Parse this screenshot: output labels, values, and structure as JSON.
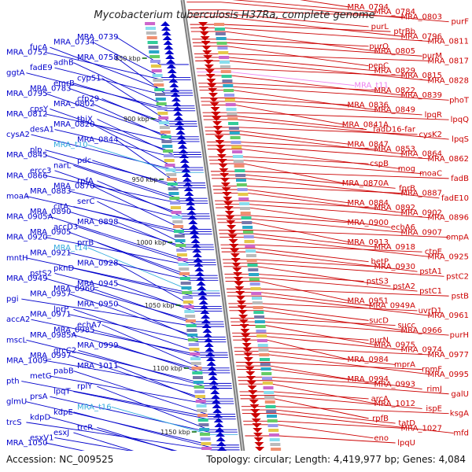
{
  "title": "Mycobacterium tuberculosis H37Ra, complete genome",
  "footer": {
    "accession": "Accession: NC_009525",
    "summary": "Topology: circular; Length: 4,419,977 bp; Genes: 4,084"
  },
  "colors": {
    "forward": "#cc0000",
    "reverse": "#0000cc",
    "trna_forward": "#ee82ee",
    "trna_reverse": "#33aadd",
    "backbone": "#888888",
    "kbp_tick": "#006600"
  },
  "scale_marks": [
    "850 kbp",
    "900 kbp",
    "950 kbp",
    "1000 kbp",
    "1050 kbp",
    "1100 kbp",
    "1150 kbp"
  ],
  "left_labels": [
    "MRA_0739",
    "MRA_0734",
    "fucA",
    "MRA_0752",
    "MRA_0758",
    "adhB",
    "fadE9",
    "ggtA",
    "cyp51",
    "emrB",
    "MRA_0783",
    "MRA_0795",
    "cfp29",
    "MRA_0802",
    "cpsY",
    "MRA_0812",
    "thiX",
    "MRA_0820",
    "desA1",
    "cysA2",
    "MRA_0844",
    "MRA_t10",
    "plp",
    "MRA_0845",
    "pdc",
    "narL",
    "ercc3",
    "MRA_0866",
    "rpfA",
    "MRA_0870",
    "MRA_0883",
    "moaA",
    "serC",
    "citA",
    "MRA_0890",
    "MRA_0905A",
    "MRA_0898",
    "accD3",
    "MRA_0905",
    "MRA_0920",
    "prrB",
    "MRA_t14",
    "MRA_0921",
    "mntH",
    "MRA_0928",
    "pknD",
    "pstS2",
    "MRA_0949",
    "MRA_0945",
    "MRA_0960",
    "MRA_0957",
    "pgi",
    "MRA_0950",
    "lprP",
    "MRA_0971",
    "accA2",
    "echA7",
    "MRA_0985",
    "MRA_0985A",
    "mscL",
    "MRA_0999",
    "grcC2",
    "MRA_0997",
    "MRA_1009",
    "MRA_1011",
    "pabB",
    "metG",
    "pth",
    "rplY",
    "lpqT",
    "prsA",
    "glmU",
    "MRA_t16",
    "kdpE",
    "kdpD",
    "trcS",
    "trcR",
    "esxJ",
    "esxV1",
    "MRA_1050"
  ],
  "right_labels": [
    "MRA_0794",
    "MRA_0784",
    "MRA_0803",
    "purF",
    "purL",
    "ptrBb",
    "MRA_0796",
    "MRA_0811",
    "purQ",
    "MRA_0805",
    "purM",
    "MRA_0817",
    "pepC",
    "MRA_0829",
    "MRA_0815",
    "MRA_0828",
    "MRA_t11",
    "MRA_0822",
    "MRA_0839",
    "phoT",
    "MRA_0836",
    "MRA_0849",
    "lpqR",
    "lpqQ",
    "MRA_0841A",
    "fadD16-far",
    "cysK2",
    "lpqS",
    "MRA_0847",
    "MRA_0853",
    "MRA_0864",
    "MRA_0862",
    "cspB",
    "mog",
    "moaC",
    "fadB",
    "MRA_0870A",
    "fprB",
    "MRA_0887",
    "fadE10",
    "MRA_0884",
    "MRA_0892",
    "MRA_0902",
    "MRA_0896",
    "MRA_0900",
    "echA6",
    "MRA_0907",
    "ompA",
    "MRA_0913",
    "MRA_0918",
    "ctpE",
    "MRA_0925",
    "betP",
    "MRA_0930",
    "pstA1",
    "pstC2",
    "pstS3",
    "pstA2",
    "pstC1",
    "pstB",
    "MRA_0951",
    "MRA_0949A",
    "uvrD1",
    "MRA_0961",
    "sucD",
    "succ",
    "MRA_0966",
    "purH",
    "purN",
    "MRA_0975",
    "MRA_0974",
    "MRA_0977",
    "MRA_0984",
    "mprA",
    "rpmF",
    "MRA_0995",
    "MRA_0994",
    "MRA_0993",
    "rimJ",
    "galU",
    "arcA",
    "MRA_1012",
    "ispE",
    "ksgA",
    "rpfB",
    "tatD",
    "MRA_1027",
    "mfd",
    "eno",
    "lpqU"
  ]
}
